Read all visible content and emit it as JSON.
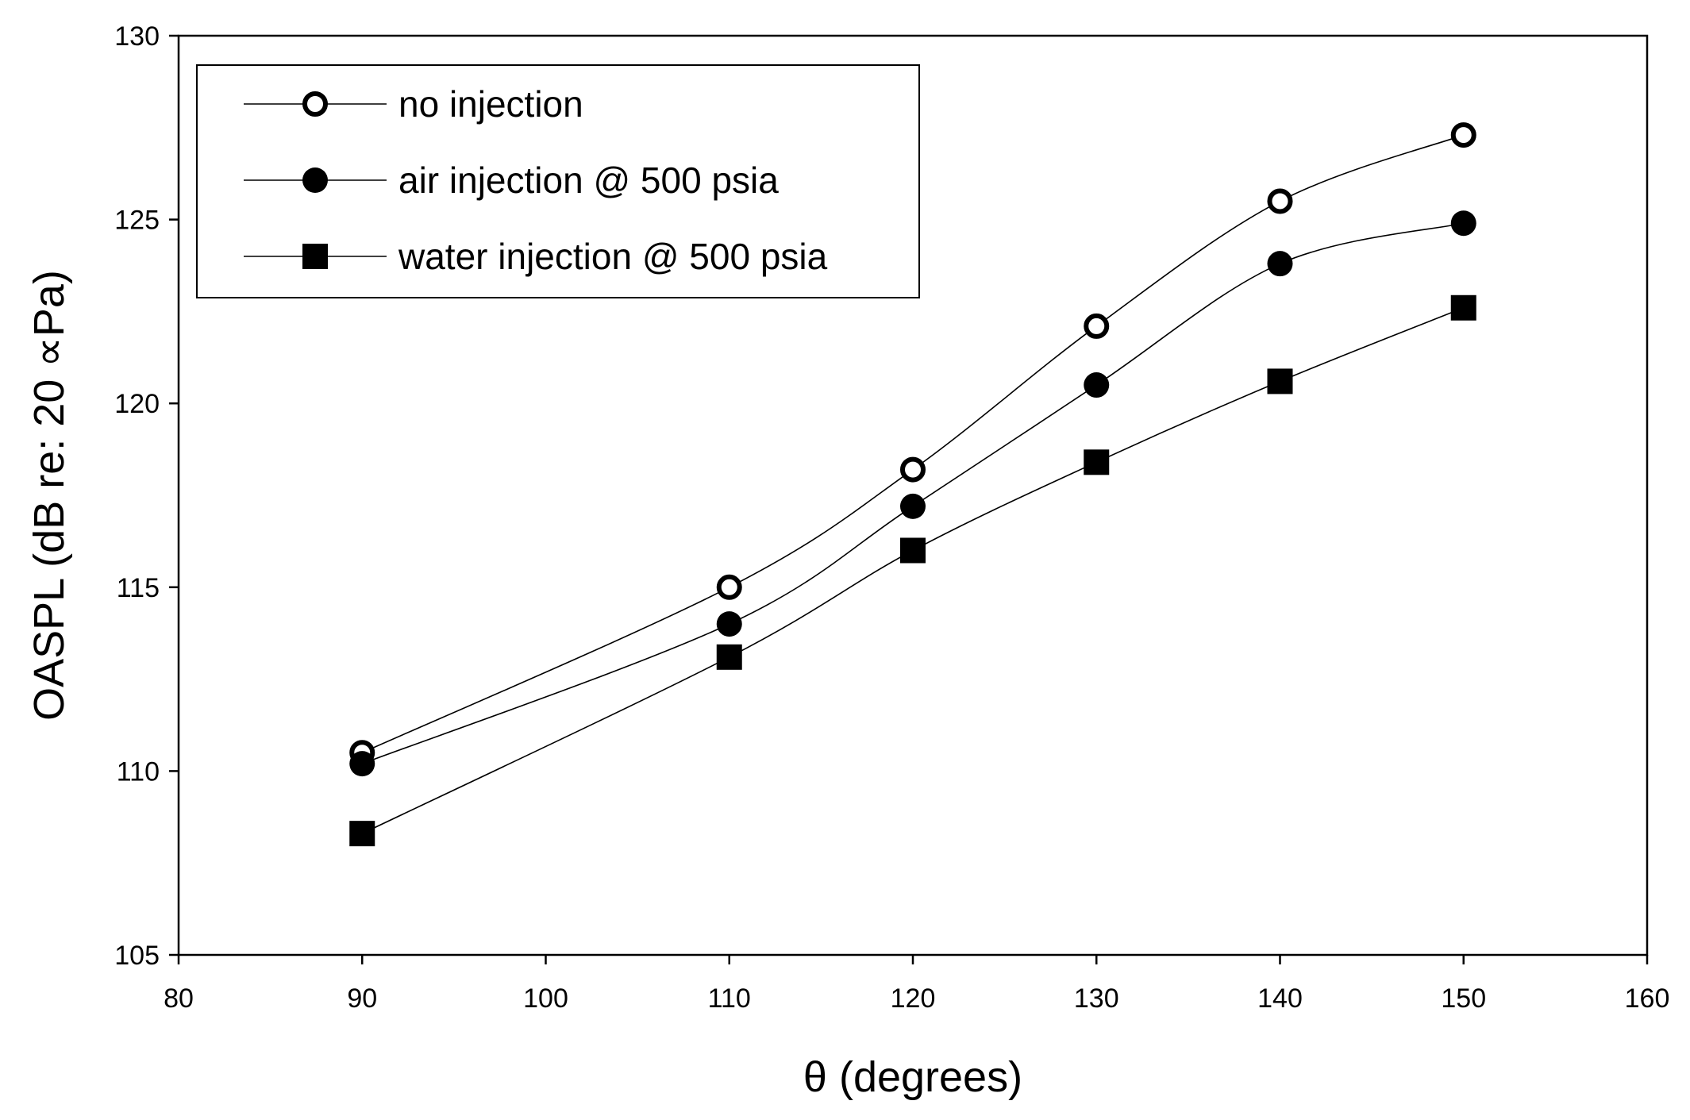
{
  "chart_data": {
    "type": "line",
    "xlabel": "θ (degrees)",
    "ylabel": "OASPL (dB re: 20 ∝Pa)",
    "xlim": [
      80,
      160
    ],
    "ylim": [
      105,
      130
    ],
    "xticks": [
      80,
      90,
      100,
      110,
      120,
      130,
      140,
      150,
      160
    ],
    "yticks": [
      105,
      110,
      115,
      120,
      125,
      130
    ],
    "x": [
      90,
      110,
      120,
      130,
      140,
      150
    ],
    "grid": false,
    "legend_position": "top-left",
    "series": [
      {
        "name": "no injection",
        "marker": "open-circle",
        "values": [
          110.5,
          115.0,
          118.2,
          122.1,
          125.5,
          127.3
        ]
      },
      {
        "name": "air injection @ 500 psia",
        "marker": "filled-circle",
        "values": [
          110.2,
          114.0,
          117.2,
          120.5,
          123.8,
          124.9
        ]
      },
      {
        "name": "water injection @ 500 psia",
        "marker": "filled-square",
        "values": [
          108.3,
          113.1,
          116.0,
          118.4,
          120.6,
          122.6
        ]
      }
    ],
    "colors": {
      "line": "#000000",
      "marker": "#000000",
      "background": "#ffffff"
    }
  }
}
